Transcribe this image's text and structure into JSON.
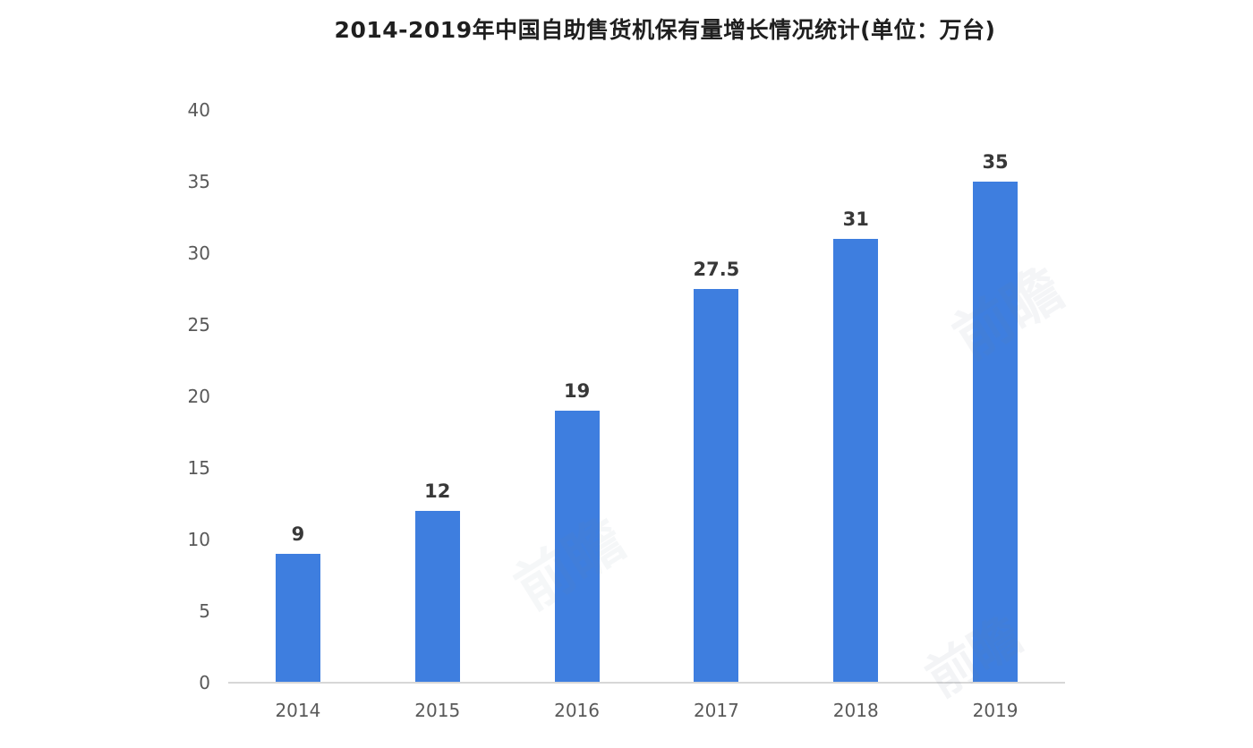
{
  "chart_data": {
    "type": "bar",
    "title": "2014-2019年中国自助售货机保有量增长情况统计(单位：万台)",
    "categories": [
      "2014",
      "2015",
      "2016",
      "2017",
      "2018",
      "2019"
    ],
    "values": [
      9,
      12,
      19,
      27.5,
      31,
      35
    ],
    "value_labels": [
      "9",
      "12",
      "19",
      "27.5",
      "31",
      "35"
    ],
    "xlabel": "",
    "ylabel": "",
    "ylim": [
      0,
      40
    ],
    "yticks": [
      0,
      5,
      10,
      15,
      20,
      25,
      30,
      35,
      40
    ],
    "grid": false,
    "legend_position": "none",
    "bar_color": "#3e7edf",
    "axis_line_color": "#d7d7d7",
    "tick_label_color": "#595959",
    "value_label_color": "#383838",
    "title_color": "#1f1f1f"
  },
  "watermark": {
    "text": "前瞻"
  }
}
